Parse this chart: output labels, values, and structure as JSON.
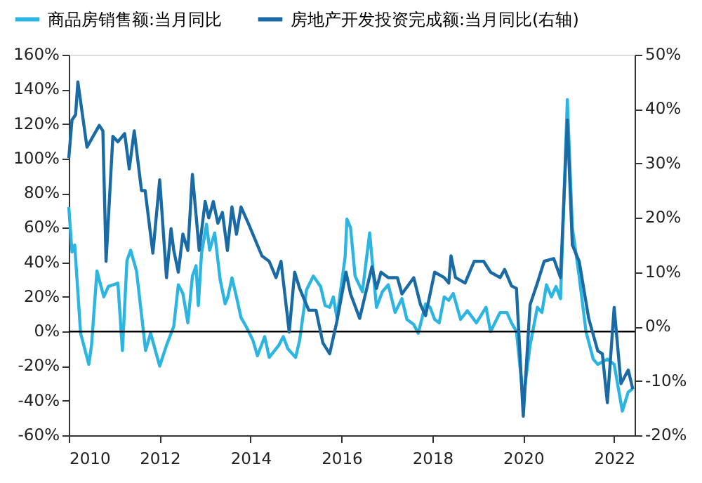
{
  "chart_data": {
    "type": "line",
    "legend": "top left",
    "grid": false,
    "line_style": "solid",
    "marker": "none",
    "xlim": [
      2010,
      2022.45
    ],
    "xticks": [
      2010,
      2012,
      2014,
      2016,
      2018,
      2020,
      2022
    ],
    "ylim": [
      -60,
      160
    ],
    "yticks": [
      {
        "value": -60,
        "label": "-60%"
      },
      {
        "value": -40,
        "label": "-40%"
      },
      {
        "value": -20,
        "label": "-20%"
      },
      {
        "value": 0,
        "label": "0%"
      },
      {
        "value": 20,
        "label": "20%"
      },
      {
        "value": 40,
        "label": "40%"
      },
      {
        "value": 60,
        "label": "60%"
      },
      {
        "value": 80,
        "label": "80%"
      },
      {
        "value": 100,
        "label": "100%"
      },
      {
        "value": 120,
        "label": "120%"
      },
      {
        "value": 140,
        "label": "140%"
      },
      {
        "value": 160,
        "label": "160%"
      }
    ],
    "y2lim": [
      -20,
      50
    ],
    "y2ticks": [
      {
        "value": -20,
        "label": "-20%"
      },
      {
        "value": -10,
        "label": "-10%"
      },
      {
        "value": 0,
        "label": "0%"
      },
      {
        "value": 10,
        "label": "10%"
      },
      {
        "value": 20,
        "label": "20%"
      },
      {
        "value": 30,
        "label": "30%"
      },
      {
        "value": 40,
        "label": "40%"
      },
      {
        "value": 50,
        "label": "50%"
      }
    ],
    "ref_lines": [
      {
        "axis": "y",
        "value": 0,
        "color": "#000000"
      }
    ],
    "series": [
      {
        "name": "商品房销售额:当月同比",
        "color": "#2cb5e3",
        "x": [
          2010.0,
          2010.07,
          2010.13,
          2010.26,
          2010.44,
          2010.5,
          2010.62,
          2010.77,
          2010.87,
          2011.08,
          2011.18,
          2011.28,
          2011.36,
          2011.49,
          2011.69,
          2011.8,
          2012.0,
          2012.15,
          2012.31,
          2012.41,
          2012.51,
          2012.62,
          2012.72,
          2012.8,
          2012.85,
          2012.92,
          2013.03,
          2013.1,
          2013.21,
          2013.33,
          2013.44,
          2013.5,
          2013.59,
          2013.69,
          2013.79,
          2013.9,
          2014.05,
          2014.15,
          2014.31,
          2014.41,
          2014.62,
          2014.72,
          2014.82,
          2014.99,
          2015.08,
          2015.23,
          2015.38,
          2015.54,
          2015.64,
          2015.74,
          2015.82,
          2015.9,
          2016.08,
          2016.12,
          2016.2,
          2016.3,
          2016.46,
          2016.62,
          2016.77,
          2016.9,
          2017.03,
          2017.18,
          2017.33,
          2017.44,
          2017.59,
          2017.69,
          2017.85,
          2017.95,
          2018.05,
          2018.15,
          2018.26,
          2018.36,
          2018.46,
          2018.62,
          2018.77,
          2018.97,
          2019.18,
          2019.28,
          2019.49,
          2019.64,
          2019.74,
          2019.85,
          2020.0,
          2020.15,
          2020.31,
          2020.41,
          2020.51,
          2020.62,
          2020.72,
          2020.82,
          2020.97,
          2021.08,
          2021.23,
          2021.38,
          2021.54,
          2021.64,
          2021.85,
          2022.0,
          2022.18,
          2022.31,
          2022.41
        ],
        "values": [
          72,
          46,
          50,
          -1,
          -19,
          -8,
          35,
          20,
          26,
          28,
          -11,
          41,
          47,
          35,
          -11,
          -1,
          -20,
          -8,
          3,
          27,
          22,
          5,
          32,
          38,
          15,
          45,
          62,
          47,
          57,
          30,
          16,
          20,
          31,
          20,
          8,
          3,
          -5,
          -14,
          -3,
          -15,
          -8,
          -3,
          -10,
          -15,
          -5,
          24,
          32,
          26,
          15,
          14,
          20,
          8,
          43,
          65,
          60,
          32,
          23,
          57,
          14,
          23,
          27,
          11,
          19,
          7,
          4,
          -1,
          16,
          14,
          7,
          5,
          20,
          18,
          22,
          7,
          12,
          5,
          14,
          0,
          11,
          11,
          5,
          0,
          -39,
          -8,
          14,
          11,
          27,
          20,
          26,
          19,
          134,
          60,
          32,
          0,
          -16,
          -19,
          -16,
          -19,
          -46,
          -35,
          -33
        ]
      },
      {
        "name": "房地产开发投资完成额:当月同比(右轴)",
        "color": "#1a6aa6",
        "axis": "y2",
        "x": [
          2010.0,
          2010.07,
          2010.15,
          2010.2,
          2010.4,
          2010.67,
          2010.75,
          2010.82,
          2010.97,
          2011.08,
          2011.23,
          2011.33,
          2011.44,
          2011.6,
          2011.68,
          2011.85,
          2012.0,
          2012.15,
          2012.25,
          2012.31,
          2012.41,
          2012.51,
          2012.62,
          2012.72,
          2012.87,
          2013.0,
          2013.08,
          2013.18,
          2013.28,
          2013.38,
          2013.49,
          2013.59,
          2013.69,
          2013.79,
          2013.95,
          2014.15,
          2014.25,
          2014.41,
          2014.56,
          2014.67,
          2014.85,
          2014.97,
          2015.08,
          2015.28,
          2015.44,
          2015.59,
          2015.74,
          2015.9,
          2016.1,
          2016.2,
          2016.4,
          2016.67,
          2016.77,
          2016.87,
          2017.03,
          2017.23,
          2017.33,
          2017.59,
          2017.74,
          2017.85,
          2018.05,
          2018.26,
          2018.36,
          2018.41,
          2018.51,
          2018.72,
          2018.92,
          2019.13,
          2019.28,
          2019.49,
          2019.59,
          2019.74,
          2019.85,
          2020.0,
          2020.15,
          2020.31,
          2020.46,
          2020.67,
          2020.82,
          2020.97,
          2021.08,
          2021.23,
          2021.44,
          2021.64,
          2021.74,
          2021.85,
          2022.0,
          2022.15,
          2022.31,
          2022.41
        ],
        "values": [
          31,
          38,
          39,
          45,
          33,
          37,
          36,
          12,
          35,
          34,
          35.5,
          29,
          36,
          25,
          25,
          13.5,
          27,
          9,
          18,
          14,
          10,
          17,
          14,
          28,
          14,
          23,
          20,
          23,
          19,
          21,
          14,
          22,
          17,
          22,
          19,
          15,
          13,
          12,
          9,
          12,
          -1,
          10,
          7,
          3,
          3,
          -3,
          -5,
          1,
          10,
          6,
          1.5,
          11,
          7,
          10,
          9,
          9,
          6,
          9,
          4,
          2,
          10,
          9,
          8,
          13,
          9,
          8,
          12,
          12,
          10,
          9,
          10.5,
          7.5,
          7,
          -16.5,
          4,
          8,
          12,
          12.5,
          9,
          38,
          15,
          12,
          1.5,
          -4.5,
          -5,
          -14,
          3.5,
          -10.5,
          -8,
          -11.5
        ]
      }
    ]
  }
}
